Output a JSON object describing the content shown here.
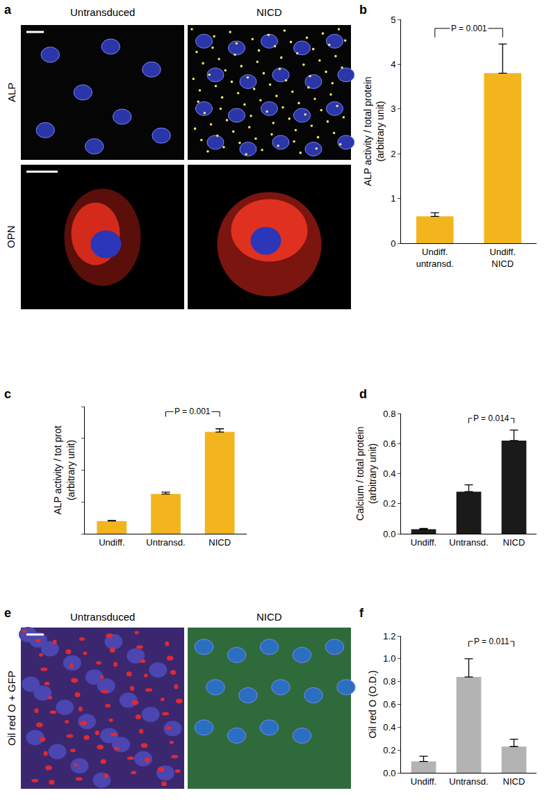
{
  "chart_data": [
    {
      "label": "b",
      "type": "bar",
      "categories": [
        "Undiff.\nuntransd.",
        "Undiff.\nNICD"
      ],
      "values": [
        0.6,
        3.8
      ],
      "errors": [
        0.08,
        0.65
      ],
      "color": "#f2b51d",
      "y_label": "ALP activity / total protein\n(arbitrary unit)",
      "ylim": [
        0,
        5
      ],
      "yticks": [
        0,
        1,
        2,
        3,
        4,
        5
      ],
      "annotations": [
        {
          "text": "P = 0.001",
          "between": [
            "Undiff.\nuntransd.",
            "Undiff.\nNICD"
          ]
        }
      ]
    },
    {
      "label": "c",
      "type": "bar",
      "categories": [
        "Undiff.",
        "Untransd.",
        "NICD"
      ],
      "values": [
        0.4,
        1.25,
        3.2
      ],
      "errors": [
        0.02,
        0.06,
        0.1
      ],
      "color": "#f2b51d",
      "y_label": "ALP activity / tot prot\n(arbitrary unit)",
      "ylim": [
        0,
        4
      ],
      "yticks": [
        0,
        1,
        2,
        3,
        4
      ],
      "tick_labels": "x",
      "annotations": [
        {
          "text": "P = 0.001",
          "between": [
            "Untransd.",
            "NICD"
          ]
        }
      ]
    },
    {
      "label": "d",
      "type": "bar",
      "categories": [
        "Undiff.",
        "Untransd.",
        "NICD"
      ],
      "values": [
        0.03,
        0.28,
        0.62
      ],
      "errors": [
        0.005,
        0.045,
        0.07
      ],
      "color": "#1a1a1a",
      "y_label": "Calcium / total protein\n(arbitrary unit)",
      "ylim": [
        0,
        0.8
      ],
      "yticks": [
        {
          "value": 0,
          "label": "0.0"
        },
        {
          "value": 0.2,
          "label": "0.2"
        },
        {
          "value": 0.4,
          "label": "0.4"
        },
        {
          "value": 0.6,
          "label": "0.6"
        },
        {
          "value": 0.8,
          "label": "0.8"
        }
      ],
      "annotations": [
        {
          "text": "P = 0.014",
          "between": [
            "Untransd.",
            "NICD"
          ]
        }
      ]
    },
    {
      "label": "f",
      "type": "bar",
      "categories": [
        "Undiff.",
        "Untransd.",
        "NICD"
      ],
      "values": [
        0.1,
        0.84,
        0.23
      ],
      "errors": [
        0.045,
        0.16,
        0.065
      ],
      "color": "#b3b3b3",
      "y_label": "Oil red O (O.D.)",
      "ylim": [
        0,
        1.2
      ],
      "yticks": [
        {
          "value": 0,
          "label": "0.0"
        },
        {
          "value": 0.2,
          "label": "0.2"
        },
        {
          "value": 0.4,
          "label": "0.4"
        },
        {
          "value": 0.6,
          "label": "0.6"
        },
        {
          "value": 0.8,
          "label": "0.8"
        },
        {
          "value": 1,
          "label": "1.0"
        },
        {
          "value": 1.2,
          "label": "1.2"
        }
      ],
      "annotations": [
        {
          "text": "P = 0.011",
          "between": [
            "Untransd.",
            "NICD"
          ]
        }
      ]
    }
  ],
  "image_panels": [
    {
      "label": "a",
      "columns": [
        "Untransduced",
        "NICD"
      ],
      "rows": [
        "ALP",
        "OPN"
      ]
    },
    {
      "label": "e",
      "columns": [
        "Untransduced",
        "NICD"
      ],
      "rows": [
        "Oil red O + GFP"
      ]
    }
  ]
}
